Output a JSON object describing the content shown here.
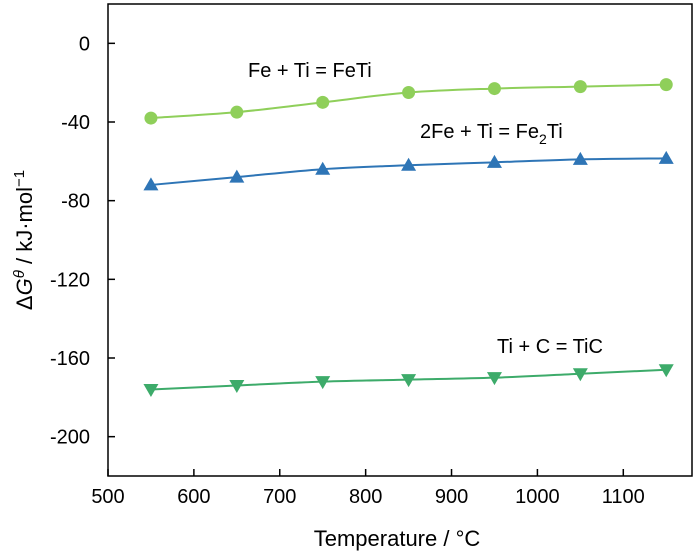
{
  "chart_data": {
    "type": "line",
    "xlabel": "Temperature / °C",
    "ylabel": {
      "delta": "Δ",
      "symbol": "G",
      "sup": "θ",
      "unit": " / kJ·mol",
      "unit_sup": "−1"
    },
    "xlim": [
      500,
      1180
    ],
    "ylim": [
      -220,
      20
    ],
    "xticks": [
      500,
      600,
      700,
      800,
      900,
      1000,
      1100
    ],
    "yticks": [
      0,
      -40,
      -80,
      -120,
      -160,
      -200
    ],
    "x": [
      550,
      650,
      750,
      850,
      950,
      1050,
      1150
    ],
    "grid": false,
    "series": [
      {
        "name": "Fe + Ti = FeTi",
        "marker": "circle",
        "color": "#8fcf5a",
        "values": [
          -38,
          -35,
          -30,
          -25,
          -23,
          -22,
          -21
        ]
      },
      {
        "name_parts": [
          "2Fe + Ti = Fe",
          "2",
          "Ti"
        ],
        "marker": "triangle-up",
        "color": "#2e75b6",
        "values": [
          -72,
          -68,
          -64,
          -62,
          -60.5,
          -59,
          -58.5
        ]
      },
      {
        "name": "Ti + C = TiC",
        "marker": "triangle-down",
        "color": "#3dab6a",
        "values": [
          -176,
          -174,
          -172,
          -171,
          -170,
          -168,
          -166
        ]
      }
    ]
  }
}
